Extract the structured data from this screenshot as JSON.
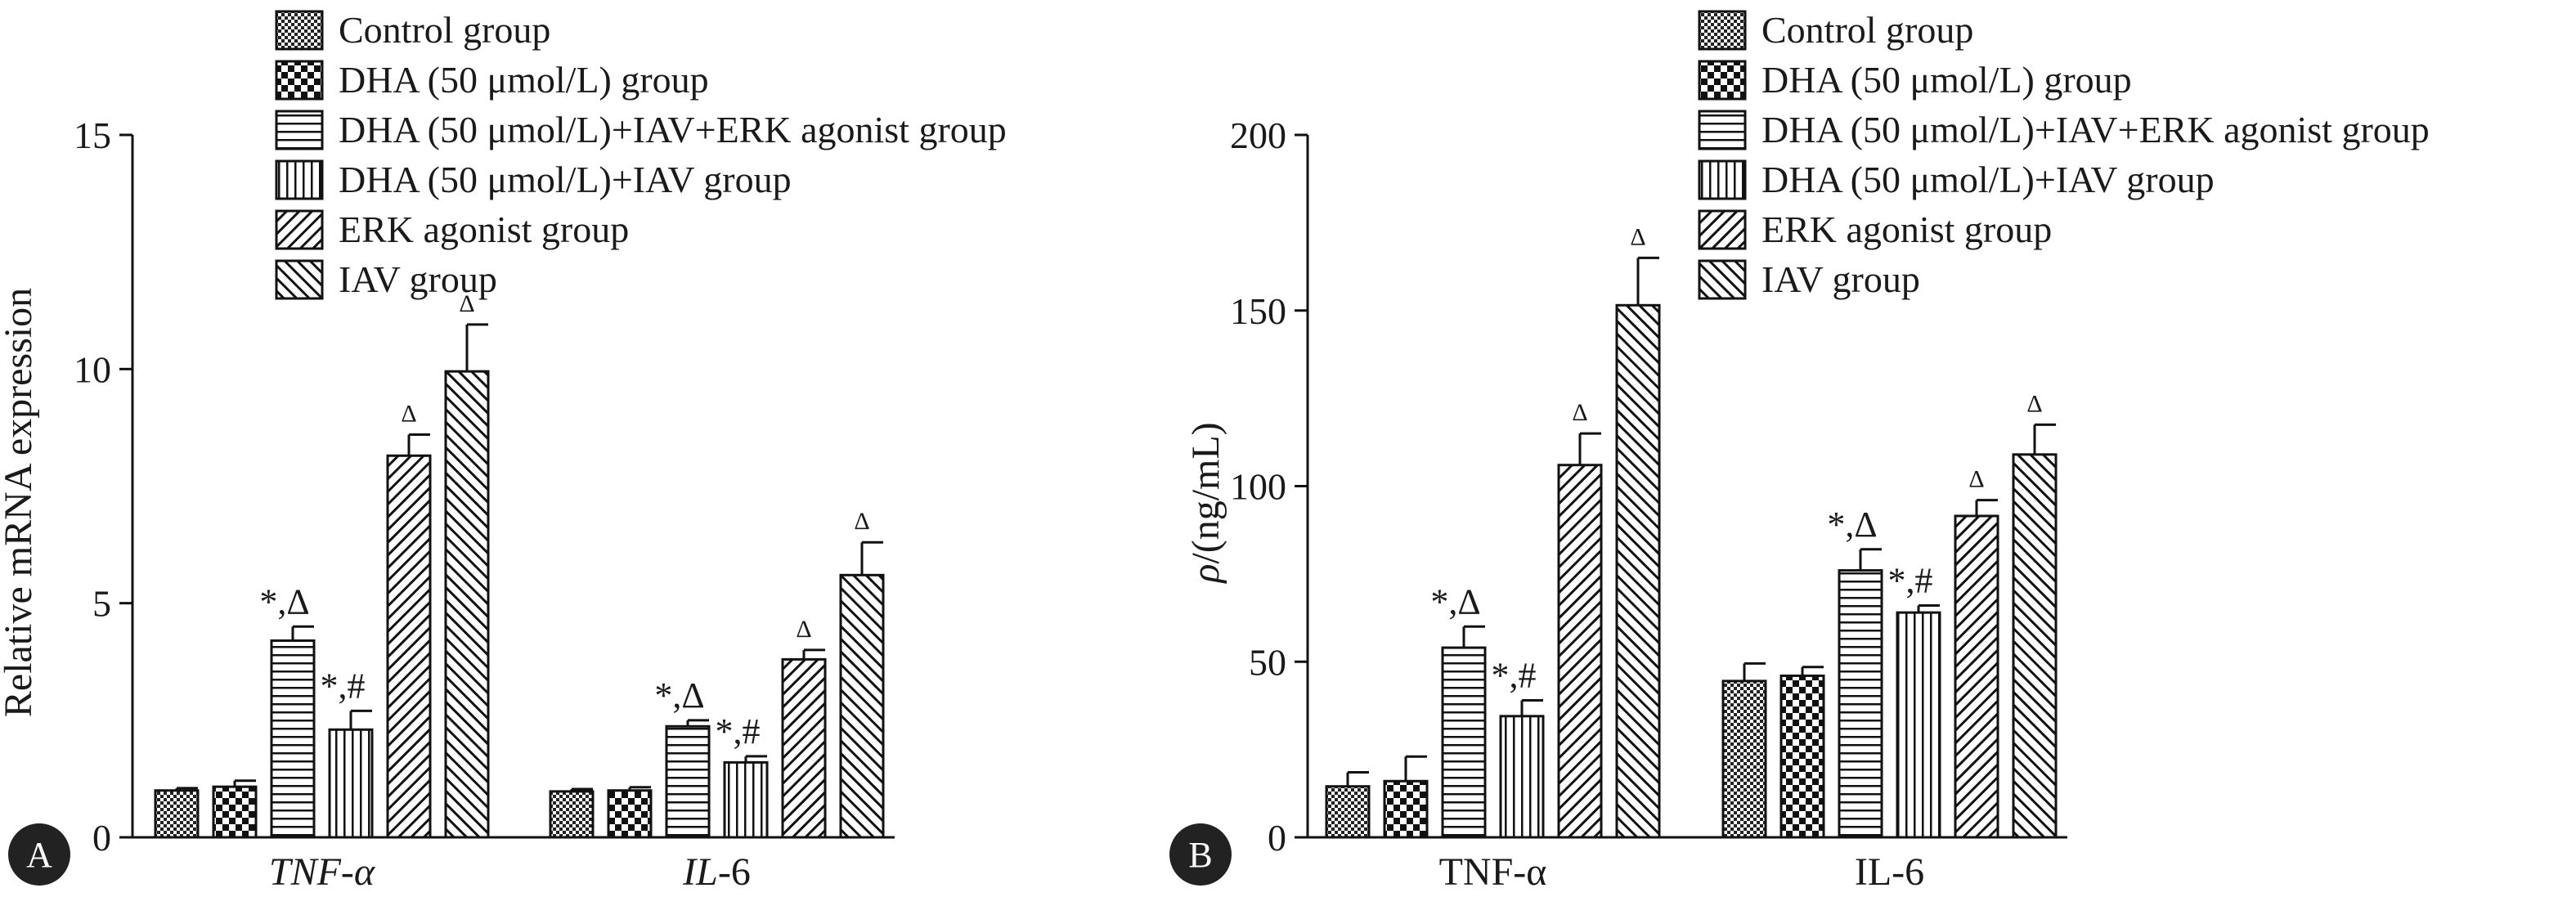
{
  "chart_data": [
    {
      "type": "bar",
      "panel": "A",
      "ylabel": "Relative mRNA expression",
      "ylim": [
        0,
        15
      ],
      "yticks": [
        0,
        5,
        10,
        15
      ],
      "categories": [
        "TNF-α",
        "IL-6"
      ],
      "category_style": "italic",
      "category_parts": [
        [
          "TNF-",
          "α"
        ],
        [
          "IL-",
          "6"
        ]
      ],
      "series": [
        {
          "name": "Control group",
          "pattern": "checker-small",
          "values": [
            1.0,
            0.98
          ],
          "errors": [
            0.05,
            0.05
          ],
          "annotations": [
            "",
            ""
          ]
        },
        {
          "name": "DHA (50 μmol/L) group",
          "pattern": "checker-large",
          "values": [
            1.08,
            1.0
          ],
          "errors": [
            0.13,
            0.07
          ],
          "annotations": [
            "",
            ""
          ]
        },
        {
          "name": "DHA (50 μmol/L)+IAV+ERK agonist group",
          "pattern": "horizontal",
          "values": [
            4.2,
            2.37
          ],
          "errors": [
            0.3,
            0.13
          ],
          "annotations": [
            "*,Δ",
            "*,Δ"
          ]
        },
        {
          "name": "DHA (50 μmol/L)+IAV group",
          "pattern": "vertical",
          "values": [
            2.3,
            1.6
          ],
          "errors": [
            0.4,
            0.13
          ],
          "annotations": [
            "*,#",
            "*,#"
          ]
        },
        {
          "name": "ERK agonist group",
          "pattern": "diag-up",
          "values": [
            8.15,
            3.8
          ],
          "errors": [
            0.45,
            0.2
          ],
          "annotations": [
            "Δ",
            "Δ"
          ]
        },
        {
          "name": "IAV group",
          "pattern": "diag-down",
          "values": [
            9.95,
            5.6
          ],
          "errors": [
            1.0,
            0.7
          ],
          "annotations": [
            "Δ",
            "Δ"
          ]
        }
      ]
    },
    {
      "type": "bar",
      "panel": "B",
      "ylabel": "ρ/(ng/mL)",
      "ylabel_parts": [
        "ρ",
        "/(ng/mL)"
      ],
      "ylim": [
        0,
        200
      ],
      "yticks": [
        0,
        50,
        100,
        150,
        200
      ],
      "categories": [
        "TNF-α",
        "IL-6"
      ],
      "category_style": "normal",
      "series": [
        {
          "name": "Control group",
          "pattern": "checker-small",
          "values": [
            14.5,
            44.5
          ],
          "errors": [
            4.0,
            5.0
          ],
          "annotations": [
            "",
            ""
          ]
        },
        {
          "name": "DHA (50 μmol/L) group",
          "pattern": "checker-large",
          "values": [
            16.0,
            46.0
          ],
          "errors": [
            7.0,
            2.5
          ],
          "annotations": [
            "",
            ""
          ]
        },
        {
          "name": "DHA (50 μmol/L)+IAV+ERK agonist group",
          "pattern": "horizontal",
          "values": [
            54.0,
            76.0
          ],
          "errors": [
            6.0,
            6.0
          ],
          "annotations": [
            "*,Δ",
            "*,Δ"
          ]
        },
        {
          "name": "DHA (50 μmol/L)+IAV group",
          "pattern": "vertical",
          "values": [
            34.5,
            64.0
          ],
          "errors": [
            4.5,
            2.0
          ],
          "annotations": [
            "*,#",
            "*,#"
          ]
        },
        {
          "name": "ERK agonist group",
          "pattern": "diag-up",
          "values": [
            106.0,
            91.5
          ],
          "errors": [
            9.0,
            4.5
          ],
          "annotations": [
            "Δ",
            "Δ"
          ]
        },
        {
          "name": "IAV group",
          "pattern": "diag-down",
          "values": [
            151.5,
            109.0
          ],
          "errors": [
            13.5,
            8.5
          ],
          "annotations": [
            "Δ",
            "Δ"
          ]
        }
      ]
    }
  ]
}
